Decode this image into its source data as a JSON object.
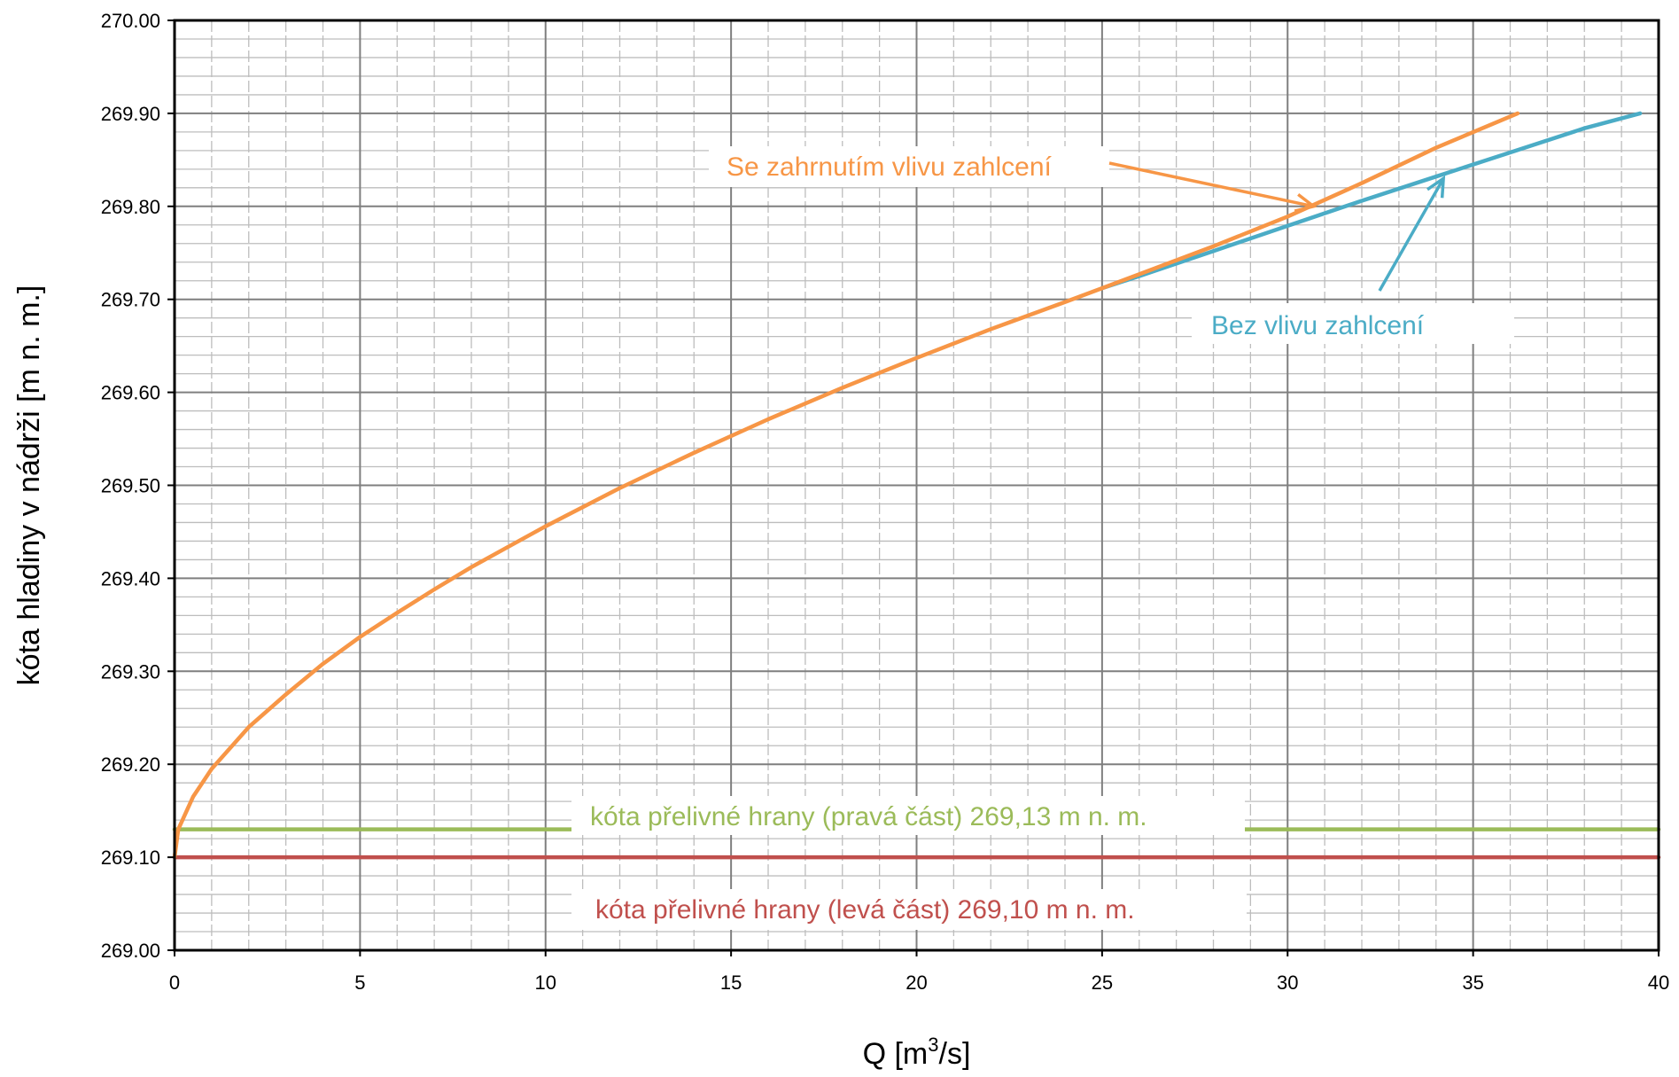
{
  "chart_data": {
    "type": "line",
    "title": "",
    "xlabel": "Q [m",
    "xlabel_sup": "3",
    "xlabel_suffix": "/s]",
    "ylabel": "kóta hladiny v nádrži [m n. m.]",
    "xlim": [
      0,
      40
    ],
    "ylim": [
      269.0,
      270.0
    ],
    "x_ticks": [
      "0",
      "5",
      "10",
      "15",
      "20",
      "25",
      "30",
      "35",
      "40"
    ],
    "y_ticks": [
      "269.00",
      "269.10",
      "269.20",
      "269.30",
      "269.40",
      "269.50",
      "269.60",
      "269.70",
      "269.80",
      "269.90",
      "270.00"
    ],
    "grid": true,
    "series": [
      {
        "name": "Se zahrnutím vlivu zahlcení",
        "color": "#F79646",
        "x": [
          0,
          0.1,
          0.5,
          1,
          2,
          3,
          4,
          5,
          6,
          7,
          8,
          9,
          10,
          12,
          14,
          16,
          18,
          20,
          22,
          24,
          25,
          26,
          28,
          30,
          32,
          34,
          36.2
        ],
        "y": [
          269.1,
          269.13,
          269.165,
          269.195,
          269.24,
          269.275,
          269.308,
          269.337,
          269.363,
          269.388,
          269.412,
          269.434,
          269.456,
          269.497,
          269.535,
          269.571,
          269.605,
          269.637,
          269.668,
          269.697,
          269.712,
          269.727,
          269.757,
          269.789,
          269.825,
          269.863,
          269.9
        ]
      },
      {
        "name": "Bez vlivu zahlcení",
        "color": "#4BACC6",
        "x": [
          25,
          26,
          28,
          30,
          32,
          34,
          36,
          38,
          39.5
        ],
        "y": [
          269.712,
          269.725,
          269.752,
          269.779,
          269.806,
          269.832,
          269.858,
          269.884,
          269.9
        ]
      },
      {
        "name": "kóta přelivné hrany (pravá část) 269,13 m n. m.",
        "color": "#9BBB59",
        "x": [
          0,
          40
        ],
        "y": [
          269.13,
          269.13
        ]
      },
      {
        "name": "kóta přelivné hrany (levá část) 269,10 m n. m.",
        "color": "#C0504D",
        "x": [
          0,
          40
        ],
        "y": [
          269.1,
          269.1
        ]
      }
    ],
    "annotations": [
      {
        "text": "Se zahrnutím vlivu zahlcení",
        "color": "#F79646",
        "series": 0,
        "arrow_to": [
          30.7,
          269.8
        ]
      },
      {
        "text": "Bez vlivu zahlcení",
        "color": "#4BACC6",
        "series": 1,
        "arrow_to": [
          34.2,
          269.83
        ]
      },
      {
        "text": "kóta přelivné hrany (pravá část) 269,13 m n. m.",
        "color": "#9BBB59",
        "series": 2
      },
      {
        "text": "kóta přelivné hrany (levá část) 269,10 m n. m.",
        "color": "#C0504D",
        "series": 3
      }
    ]
  }
}
